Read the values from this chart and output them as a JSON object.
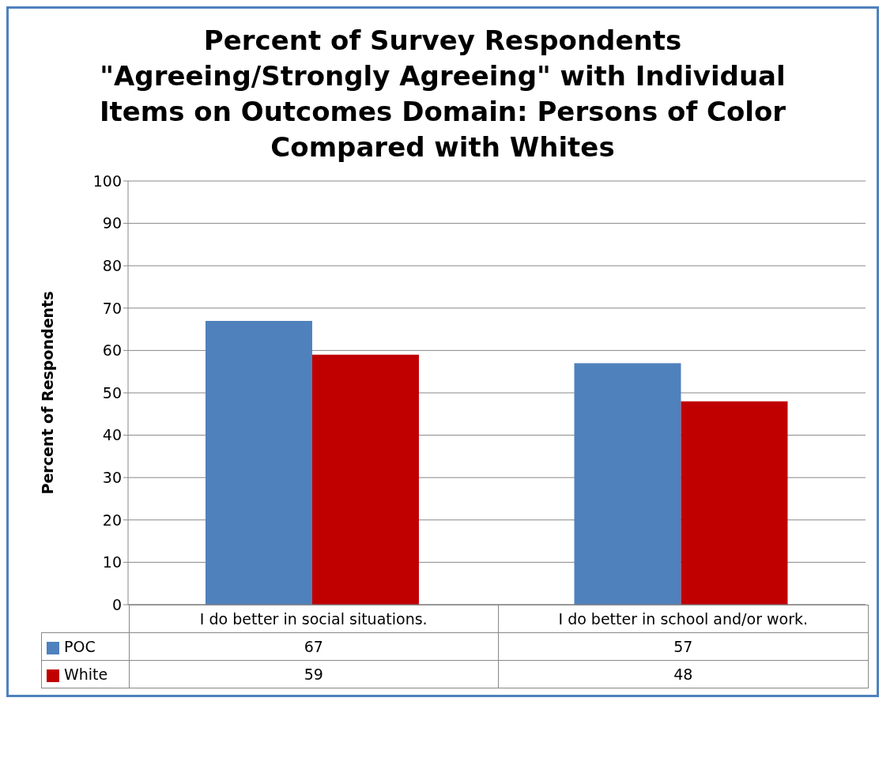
{
  "chart_data": {
    "type": "bar",
    "title": "Percent of Survey Respondents \"Agreeing/Strongly Agreeing\" with Individual Items on Outcomes Domain:  Persons of Color Compared with Whites",
    "ylabel": "Percent of Respondents",
    "categories": [
      "I do better in social situations.",
      "I do better in school and/or work."
    ],
    "series": [
      {
        "name": "POC",
        "color": "#4f81bd",
        "values": [
          67,
          57
        ]
      },
      {
        "name": "White",
        "color": "#c00000",
        "values": [
          59,
          48
        ]
      }
    ],
    "ylim": [
      0,
      100
    ],
    "yticks": [
      0,
      10,
      20,
      30,
      40,
      50,
      60,
      70,
      80,
      90,
      100
    ],
    "grid": "y",
    "legend": "bottom",
    "data_labels": true
  }
}
